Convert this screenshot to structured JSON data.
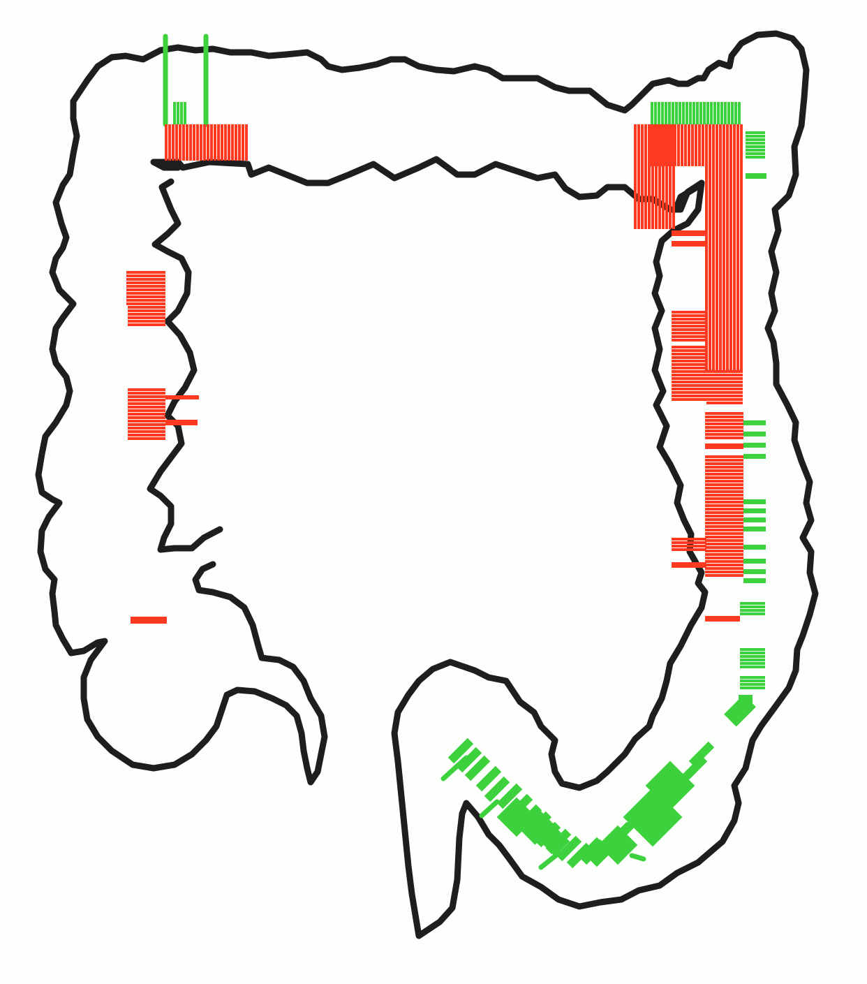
{
  "colors": {
    "background": "#fdfffd",
    "outline": "#1e1e1e",
    "red_mark": "#ff3a20",
    "green_mark": "#3dd23d"
  },
  "diagram": {
    "subject": "colon-outline",
    "outline_color_role": "outline",
    "mark_colors": [
      "red_mark",
      "green_mark"
    ]
  }
}
